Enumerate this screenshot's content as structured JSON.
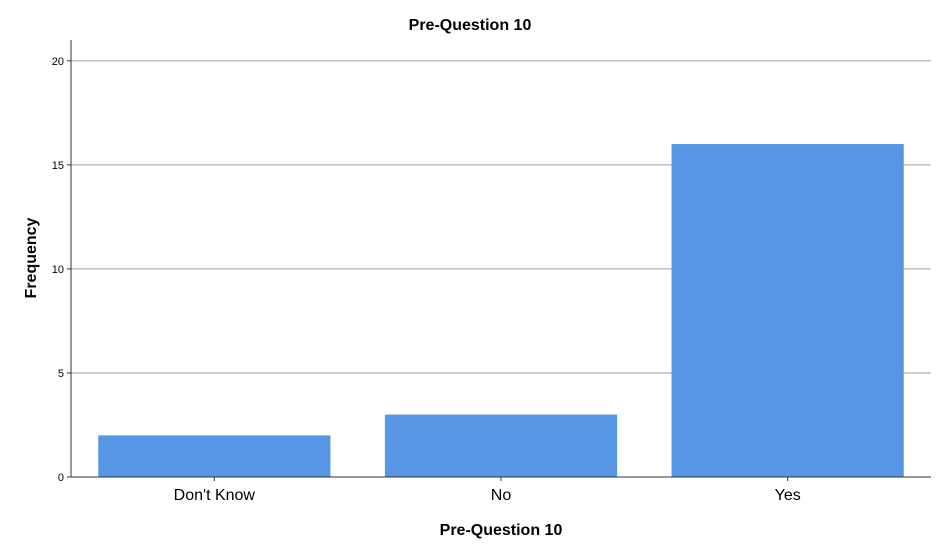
{
  "chart_data": {
    "type": "bar",
    "title": "Pre-Question 10",
    "xlabel": "Pre-Question 10",
    "ylabel": "Frequency",
    "categories": [
      "Don't Know",
      "No",
      "Yes"
    ],
    "values": [
      2,
      3,
      16
    ],
    "ylim": [
      0,
      21
    ],
    "yticks": [
      0,
      5,
      10,
      15,
      20
    ],
    "grid": true,
    "bar_color": "#5795e5"
  }
}
